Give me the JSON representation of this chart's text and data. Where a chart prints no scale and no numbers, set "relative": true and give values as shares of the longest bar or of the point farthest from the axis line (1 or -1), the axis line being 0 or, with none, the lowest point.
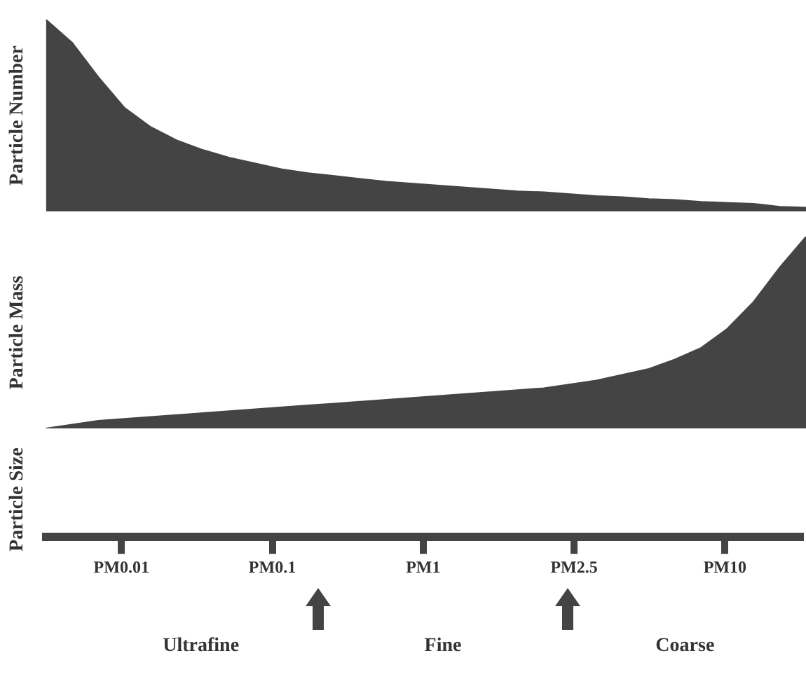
{
  "chart_data": [
    {
      "type": "area",
      "ylabel": "Particle Number",
      "relative": true,
      "categories": [
        null,
        null,
        null,
        null,
        null,
        null,
        null,
        null,
        null,
        null,
        null,
        null,
        null,
        null,
        null,
        null,
        null,
        null,
        null,
        null,
        null,
        null,
        null,
        null,
        null,
        null,
        null,
        null,
        null,
        null
      ],
      "series": [
        {
          "color": "#444444",
          "values": [
            1.0,
            0.88,
            0.7,
            0.54,
            0.44,
            0.37,
            0.32,
            0.28,
            0.25,
            0.22,
            0.2,
            0.185,
            0.17,
            0.155,
            0.145,
            0.135,
            0.125,
            0.115,
            0.105,
            0.1,
            0.09,
            0.08,
            0.075,
            0.065,
            0.06,
            0.05,
            0.045,
            0.04,
            0.025,
            0.02
          ]
        }
      ],
      "legend": false,
      "grid": false
    },
    {
      "type": "area",
      "ylabel": "Particle Mass",
      "relative": true,
      "categories": [
        null,
        null,
        null,
        null,
        null,
        null,
        null,
        null,
        null,
        null,
        null,
        null,
        null,
        null,
        null,
        null,
        null,
        null,
        null,
        null,
        null,
        null,
        null,
        null,
        null,
        null,
        null,
        null,
        null,
        null
      ],
      "series": [
        {
          "color": "#444444",
          "values": [
            0.0,
            0.02,
            0.04,
            0.05,
            0.06,
            0.07,
            0.08,
            0.09,
            0.1,
            0.11,
            0.12,
            0.13,
            0.14,
            0.15,
            0.16,
            0.17,
            0.18,
            0.19,
            0.2,
            0.21,
            0.23,
            0.25,
            0.28,
            0.31,
            0.36,
            0.42,
            0.52,
            0.66,
            0.84,
            1.0
          ]
        }
      ],
      "legend": false,
      "grid": false
    },
    {
      "type": "other",
      "ylabel": "Particle Size",
      "categories": [
        "PM0.01",
        "PM0.1",
        "PM1",
        "PM2.5",
        "PM10"
      ],
      "annotations": [
        "Ultrafine",
        "Fine",
        "Coarse"
      ]
    }
  ]
}
